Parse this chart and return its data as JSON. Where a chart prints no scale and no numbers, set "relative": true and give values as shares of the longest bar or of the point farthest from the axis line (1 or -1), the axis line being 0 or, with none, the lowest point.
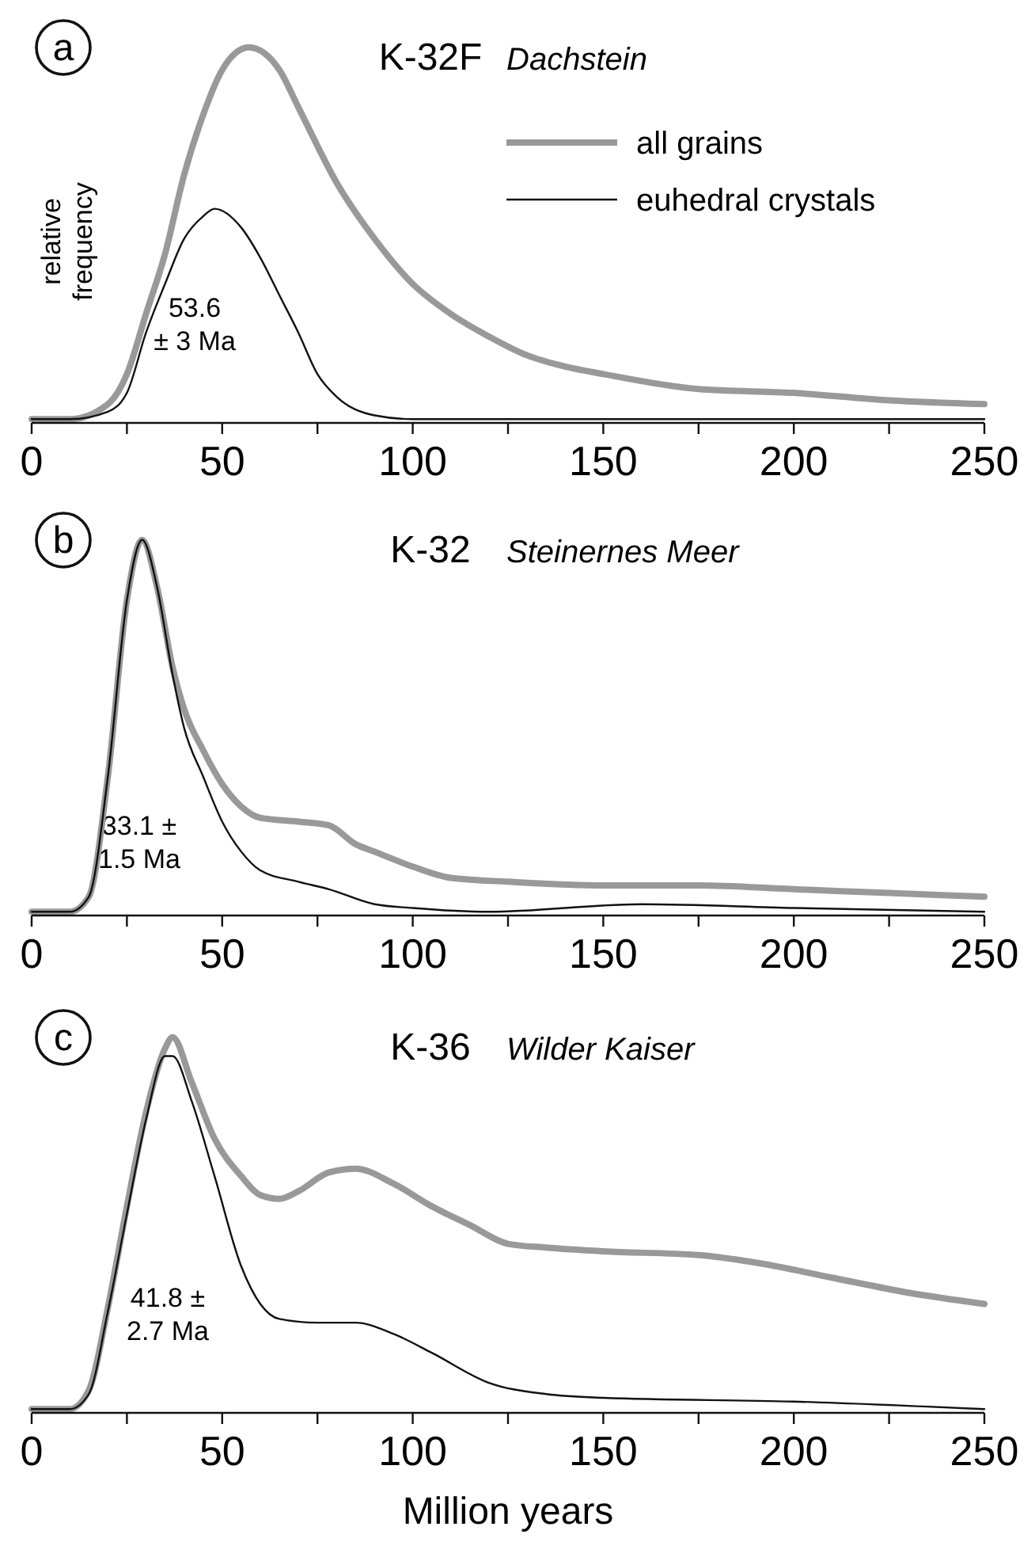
{
  "chart_data": [
    {
      "type": "line",
      "title": "K-32F",
      "subtitle": "Dachstein",
      "ylabel": "relative frequency",
      "relative": true,
      "legend": "top right",
      "xlim": [
        0,
        250
      ],
      "xticks": [
        0,
        {
          "value": 25,
          "label": null
        },
        50,
        {
          "value": 75,
          "label": null
        },
        100,
        {
          "value": 125,
          "label": null
        },
        150,
        {
          "value": 175,
          "label": null
        },
        200,
        {
          "value": 225,
          "label": null
        },
        250
      ],
      "annotations": [
        "a",
        "53.6\n± 3 Ma"
      ],
      "series": [
        {
          "name": "all grains",
          "color": "#999999",
          "x": [
            0,
            10,
            20,
            25,
            30,
            35,
            40,
            45,
            50,
            57,
            65,
            70,
            80,
            90,
            100,
            110,
            120,
            130,
            140,
            150,
            175,
            200,
            225,
            250
          ],
          "values": [
            0.01,
            0.01,
            0.05,
            0.13,
            0.29,
            0.45,
            0.66,
            0.82,
            0.94,
            1,
            0.94,
            0.84,
            0.64,
            0.49,
            0.37,
            0.29,
            0.23,
            0.18,
            0.15,
            0.13,
            0.09,
            0.08,
            0.06,
            0.05
          ]
        },
        {
          "name": "euhedral crystals",
          "color": "#111111",
          "x": [
            0,
            10,
            20,
            25,
            30,
            35,
            40,
            45,
            48,
            55,
            60,
            65,
            70,
            75,
            80,
            90,
            100,
            150,
            250
          ],
          "values": [
            0.01,
            0.01,
            0.03,
            0.08,
            0.24,
            0.37,
            0.49,
            0.55,
            0.57,
            0.52,
            0.44,
            0.34,
            0.24,
            0.13,
            0.07,
            0.02,
            0.01,
            0.01,
            0.01
          ]
        }
      ]
    },
    {
      "type": "line",
      "title": "K-32",
      "subtitle": "Steinernes Meer",
      "relative": true,
      "xlim": [
        0,
        250
      ],
      "xticks": [
        0,
        {
          "value": 25,
          "label": null
        },
        50,
        {
          "value": 75,
          "label": null
        },
        100,
        {
          "value": 125,
          "label": null
        },
        150,
        {
          "value": 175,
          "label": null
        },
        200,
        {
          "value": 225,
          "label": null
        },
        250
      ],
      "annotations": [
        "b",
        "33.1 ±\n1.5 Ma"
      ],
      "series": [
        {
          "color": "#999999",
          "x": [
            0,
            10,
            15,
            20,
            25,
            29,
            33,
            37,
            40,
            45,
            50,
            55,
            60,
            70,
            78,
            85,
            90,
            100,
            110,
            125,
            150,
            175,
            200,
            225,
            250
          ],
          "values": [
            0.01,
            0.01,
            0.05,
            0.37,
            0.84,
            1,
            0.87,
            0.66,
            0.55,
            0.44,
            0.35,
            0.29,
            0.26,
            0.25,
            0.24,
            0.19,
            0.17,
            0.13,
            0.1,
            0.09,
            0.08,
            0.08,
            0.07,
            0.06,
            0.05
          ]
        },
        {
          "color": "#111111",
          "x": [
            0,
            10,
            15,
            20,
            25,
            29,
            33,
            37,
            40,
            45,
            50,
            55,
            60,
            70,
            78,
            90,
            100,
            120,
            160,
            200,
            250
          ],
          "values": [
            0.01,
            0.01,
            0.05,
            0.37,
            0.84,
            1,
            0.87,
            0.64,
            0.5,
            0.37,
            0.25,
            0.17,
            0.12,
            0.09,
            0.07,
            0.03,
            0.02,
            0.01,
            0.03,
            0.02,
            0.01
          ]
        }
      ]
    },
    {
      "type": "line",
      "title": "K-36",
      "subtitle": "Wilder Kaiser",
      "xlabel": "Million years",
      "relative": true,
      "xlim": [
        0,
        250
      ],
      "xticks": [
        0,
        {
          "value": 25,
          "label": null
        },
        50,
        {
          "value": 75,
          "label": null
        },
        100,
        {
          "value": 125,
          "label": null
        },
        150,
        {
          "value": 175,
          "label": null
        },
        200,
        {
          "value": 225,
          "label": null
        },
        250
      ],
      "annotations": [
        "c",
        "41.8 ±\n2.7 Ma"
      ],
      "series": [
        {
          "color": "#999999",
          "x": [
            0,
            10,
            15,
            20,
            25,
            30,
            35,
            37,
            42,
            48,
            55,
            60,
            65,
            70,
            78,
            85,
            95,
            105,
            115,
            125,
            135,
            150,
            175,
            190,
            210,
            230,
            250
          ],
          "values": [
            0.01,
            0.01,
            0.06,
            0.28,
            0.55,
            0.8,
            0.97,
            1,
            0.88,
            0.73,
            0.63,
            0.58,
            0.57,
            0.59,
            0.64,
            0.65,
            0.61,
            0.55,
            0.5,
            0.45,
            0.44,
            0.43,
            0.42,
            0.4,
            0.36,
            0.32,
            0.29
          ]
        },
        {
          "color": "#111111",
          "x": [
            0,
            10,
            15,
            20,
            25,
            30,
            35,
            37,
            42,
            48,
            55,
            60,
            65,
            75,
            85,
            95,
            105,
            120,
            135,
            150,
            200,
            250
          ],
          "values": [
            0.01,
            0.01,
            0.05,
            0.27,
            0.53,
            0.78,
            0.95,
            0.95,
            0.83,
            0.63,
            0.39,
            0.29,
            0.25,
            0.24,
            0.24,
            0.21,
            0.16,
            0.08,
            0.05,
            0.04,
            0.03,
            0.01
          ]
        }
      ]
    }
  ]
}
